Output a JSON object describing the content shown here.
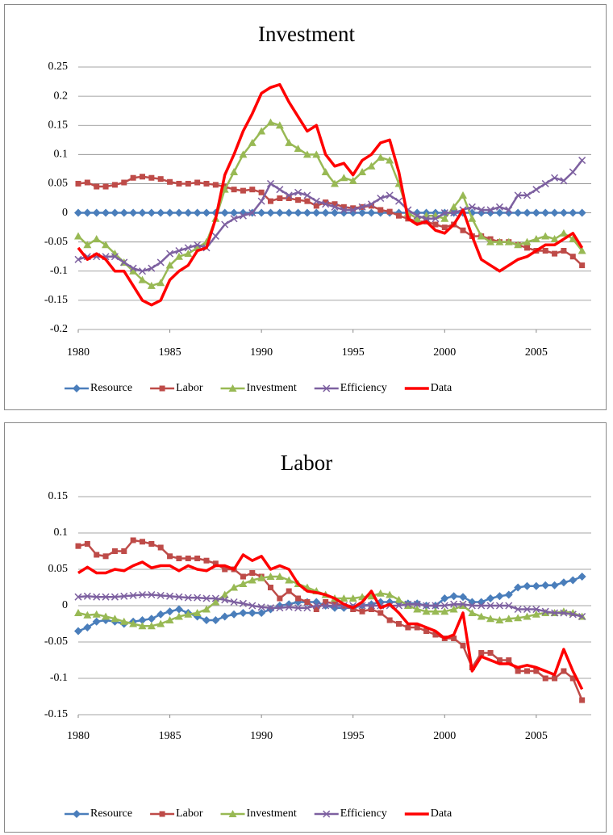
{
  "chart_data": [
    {
      "type": "line",
      "title": "Investment",
      "grid": true,
      "legend": "bottom",
      "xlim": [
        1980,
        2008
      ],
      "xticks": [
        1980,
        1985,
        1990,
        1995,
        2000,
        2005
      ],
      "ylim": [
        -0.2,
        0.25
      ],
      "yticks": [
        -0.2,
        -0.15,
        -0.1,
        -0.05,
        0,
        0.05,
        0.1,
        0.15,
        0.2,
        0.25
      ],
      "x": [
        1980,
        1980.5,
        1981,
        1981.5,
        1982,
        1982.5,
        1983,
        1983.5,
        1984,
        1984.5,
        1985,
        1985.5,
        1986,
        1986.5,
        1987,
        1987.5,
        1988,
        1988.5,
        1989,
        1989.5,
        1990,
        1990.5,
        1991,
        1991.5,
        1992,
        1992.5,
        1993,
        1993.5,
        1994,
        1994.5,
        1995,
        1995.5,
        1996,
        1996.5,
        1997,
        1997.5,
        1998,
        1998.5,
        1999,
        1999.5,
        2000,
        2000.5,
        2001,
        2001.5,
        2002,
        2002.5,
        2003,
        2003.5,
        2004,
        2004.5,
        2005,
        2005.5,
        2006,
        2006.5,
        2007,
        2007.5
      ],
      "series": [
        {
          "name": "Resource",
          "color": "#4a7ebb",
          "marker": "diamond",
          "values": [
            0,
            0,
            0,
            0,
            0,
            0,
            0,
            0,
            0,
            0,
            0,
            0,
            0,
            0,
            0,
            0,
            0,
            0,
            0,
            0,
            0,
            0,
            0,
            0,
            0,
            0,
            0,
            0,
            0,
            0,
            0,
            0,
            0,
            0,
            0,
            0,
            0,
            0,
            0,
            0,
            0,
            0,
            0,
            0,
            0,
            0,
            0,
            0,
            0,
            0,
            0,
            0,
            0,
            0,
            0,
            0
          ]
        },
        {
          "name": "Labor",
          "color": "#be4b48",
          "marker": "square",
          "values": [
            0.05,
            0.052,
            0.045,
            0.045,
            0.048,
            0.052,
            0.06,
            0.062,
            0.06,
            0.058,
            0.053,
            0.05,
            0.05,
            0.052,
            0.05,
            0.048,
            0.045,
            0.04,
            0.038,
            0.04,
            0.035,
            0.02,
            0.025,
            0.025,
            0.022,
            0.02,
            0.012,
            0.018,
            0.015,
            0.01,
            0.008,
            0.01,
            0.012,
            0.005,
            0.002,
            -0.005,
            -0.01,
            -0.015,
            -0.015,
            -0.02,
            -0.025,
            -0.02,
            -0.03,
            -0.04,
            -0.04,
            -0.045,
            -0.05,
            -0.05,
            -0.055,
            -0.06,
            -0.065,
            -0.065,
            -0.07,
            -0.065,
            -0.075,
            -0.09
          ]
        },
        {
          "name": "Investment",
          "color": "#98b954",
          "marker": "triangle",
          "values": [
            -0.04,
            -0.055,
            -0.045,
            -0.055,
            -0.07,
            -0.085,
            -0.1,
            -0.115,
            -0.125,
            -0.12,
            -0.09,
            -0.075,
            -0.07,
            -0.06,
            -0.05,
            -0.01,
            0.04,
            0.07,
            0.1,
            0.12,
            0.14,
            0.155,
            0.15,
            0.12,
            0.11,
            0.1,
            0.1,
            0.07,
            0.05,
            0.06,
            0.055,
            0.07,
            0.08,
            0.095,
            0.09,
            0.05,
            0,
            -0.01,
            -0.005,
            -0.005,
            -0.01,
            0.01,
            0.03,
            -0.01,
            -0.04,
            -0.05,
            -0.05,
            -0.05,
            -0.055,
            -0.05,
            -0.045,
            -0.04,
            -0.045,
            -0.035,
            -0.045,
            -0.065
          ]
        },
        {
          "name": "Efficiency",
          "color": "#7d60a0",
          "marker": "cross",
          "values": [
            -0.08,
            -0.075,
            -0.075,
            -0.075,
            -0.075,
            -0.085,
            -0.095,
            -0.1,
            -0.095,
            -0.085,
            -0.07,
            -0.065,
            -0.06,
            -0.055,
            -0.06,
            -0.04,
            -0.02,
            -0.01,
            -0.005,
            0,
            0.02,
            0.05,
            0.04,
            0.03,
            0.035,
            0.03,
            0.02,
            0.015,
            0.01,
            0.005,
            0.005,
            0.01,
            0.015,
            0.025,
            0.03,
            0.02,
            0.005,
            -0.005,
            -0.01,
            -0.01,
            0,
            0,
            0.005,
            0.01,
            0.005,
            0.005,
            0.01,
            0.005,
            0.03,
            0.03,
            0.04,
            0.05,
            0.06,
            0.055,
            0.07,
            0.09
          ]
        },
        {
          "name": "Data",
          "color": "#ff0000",
          "marker": "none",
          "values": [
            -0.06,
            -0.08,
            -0.07,
            -0.08,
            -0.1,
            -0.1,
            -0.125,
            -0.15,
            -0.158,
            -0.15,
            -0.115,
            -0.1,
            -0.09,
            -0.065,
            -0.06,
            -0.01,
            0.065,
            0.1,
            0.14,
            0.17,
            0.205,
            0.215,
            0.22,
            0.19,
            0.165,
            0.14,
            0.15,
            0.1,
            0.08,
            0.085,
            0.065,
            0.09,
            0.1,
            0.12,
            0.125,
            0.07,
            -0.01,
            -0.02,
            -0.015,
            -0.03,
            -0.035,
            -0.02,
            0.005,
            -0.04,
            -0.08,
            -0.09,
            -0.1,
            -0.09,
            -0.08,
            -0.075,
            -0.065,
            -0.055,
            -0.055,
            -0.045,
            -0.035,
            -0.06
          ]
        }
      ]
    },
    {
      "type": "line",
      "title": "Labor",
      "grid": true,
      "legend": "bottom",
      "xlim": [
        1980,
        2008
      ],
      "xticks": [
        1980,
        1985,
        1990,
        1995,
        2000,
        2005
      ],
      "ylim": [
        -0.15,
        0.15
      ],
      "yticks": [
        -0.15,
        -0.1,
        -0.05,
        0,
        0.05,
        0.1,
        0.15
      ],
      "x": [
        1980,
        1980.5,
        1981,
        1981.5,
        1982,
        1982.5,
        1983,
        1983.5,
        1984,
        1984.5,
        1985,
        1985.5,
        1986,
        1986.5,
        1987,
        1987.5,
        1988,
        1988.5,
        1989,
        1989.5,
        1990,
        1990.5,
        1991,
        1991.5,
        1992,
        1992.5,
        1993,
        1993.5,
        1994,
        1994.5,
        1995,
        1995.5,
        1996,
        1996.5,
        1997,
        1997.5,
        1998,
        1998.5,
        1999,
        1999.5,
        2000,
        2000.5,
        2001,
        2001.5,
        2002,
        2002.5,
        2003,
        2003.5,
        2004,
        2004.5,
        2005,
        2005.5,
        2006,
        2006.5,
        2007,
        2007.5
      ],
      "series": [
        {
          "name": "Resource",
          "color": "#4a7ebb",
          "marker": "diamond",
          "values": [
            -0.035,
            -0.03,
            -0.022,
            -0.02,
            -0.022,
            -0.025,
            -0.022,
            -0.02,
            -0.018,
            -0.012,
            -0.008,
            -0.005,
            -0.01,
            -0.015,
            -0.02,
            -0.02,
            -0.015,
            -0.012,
            -0.01,
            -0.01,
            -0.01,
            -0.005,
            0,
            0.002,
            0.005,
            0.005,
            0.005,
            0,
            -0.003,
            -0.003,
            -0.003,
            0,
            0.002,
            0.005,
            0.005,
            0.005,
            0.003,
            0.003,
            0,
            0,
            0.01,
            0.013,
            0.012,
            0.005,
            0.005,
            0.01,
            0.013,
            0.015,
            0.025,
            0.027,
            0.027,
            0.028,
            0.028,
            0.032,
            0.035,
            0.04
          ]
        },
        {
          "name": "Labor",
          "color": "#be4b48",
          "marker": "square",
          "values": [
            0.082,
            0.085,
            0.07,
            0.068,
            0.075,
            0.075,
            0.09,
            0.088,
            0.085,
            0.08,
            0.068,
            0.065,
            0.065,
            0.065,
            0.062,
            0.058,
            0.05,
            0.05,
            0.04,
            0.045,
            0.04,
            0.025,
            0.01,
            0.02,
            0.01,
            0.005,
            -0.005,
            0.005,
            0.003,
            0,
            -0.005,
            -0.008,
            -0.005,
            -0.01,
            -0.02,
            -0.025,
            -0.03,
            -0.03,
            -0.035,
            -0.04,
            -0.045,
            -0.045,
            -0.055,
            -0.085,
            -0.065,
            -0.065,
            -0.075,
            -0.075,
            -0.09,
            -0.09,
            -0.09,
            -0.1,
            -0.1,
            -0.09,
            -0.1,
            -0.13
          ]
        },
        {
          "name": "Investment",
          "color": "#98b954",
          "marker": "triangle",
          "values": [
            -0.01,
            -0.013,
            -0.012,
            -0.015,
            -0.018,
            -0.022,
            -0.025,
            -0.028,
            -0.028,
            -0.025,
            -0.02,
            -0.015,
            -0.012,
            -0.01,
            -0.005,
            0.005,
            0.015,
            0.025,
            0.03,
            0.035,
            0.038,
            0.04,
            0.04,
            0.035,
            0.03,
            0.025,
            0.02,
            0.015,
            0.01,
            0.01,
            0.01,
            0.012,
            0.013,
            0.017,
            0.015,
            0.008,
            0,
            -0.005,
            -0.008,
            -0.008,
            -0.008,
            -0.005,
            0,
            -0.01,
            -0.015,
            -0.018,
            -0.02,
            -0.018,
            -0.017,
            -0.015,
            -0.012,
            -0.01,
            -0.01,
            -0.008,
            -0.01,
            -0.015
          ]
        },
        {
          "name": "Efficiency",
          "color": "#7d60a0",
          "marker": "cross",
          "values": [
            0.012,
            0.013,
            0.012,
            0.012,
            0.012,
            0.013,
            0.014,
            0.015,
            0.015,
            0.014,
            0.013,
            0.012,
            0.011,
            0.011,
            0.01,
            0.01,
            0.008,
            0.005,
            0.003,
            0,
            -0.002,
            -0.003,
            -0.003,
            -0.002,
            -0.003,
            -0.003,
            0,
            0,
            0,
            0,
            0,
            0,
            0,
            0,
            0,
            0,
            0.002,
            0.002,
            0,
            0,
            0,
            0.002,
            0.002,
            0,
            0,
            0,
            0,
            0,
            -0.005,
            -0.005,
            -0.005,
            -0.008,
            -0.01,
            -0.01,
            -0.012,
            -0.015
          ]
        },
        {
          "name": "Data",
          "color": "#ff0000",
          "marker": "none",
          "values": [
            0.045,
            0.053,
            0.045,
            0.045,
            0.05,
            0.048,
            0.055,
            0.06,
            0.052,
            0.055,
            0.055,
            0.048,
            0.055,
            0.05,
            0.048,
            0.055,
            0.055,
            0.05,
            0.07,
            0.062,
            0.068,
            0.05,
            0.055,
            0.05,
            0.03,
            0.02,
            0.018,
            0.015,
            0.01,
            0.002,
            -0.003,
            0.005,
            0.02,
            -0.003,
            0.002,
            -0.01,
            -0.025,
            -0.025,
            -0.03,
            -0.035,
            -0.045,
            -0.04,
            -0.01,
            -0.09,
            -0.07,
            -0.075,
            -0.08,
            -0.08,
            -0.085,
            -0.082,
            -0.085,
            -0.09,
            -0.095,
            -0.06,
            -0.09,
            -0.115
          ]
        }
      ]
    }
  ]
}
